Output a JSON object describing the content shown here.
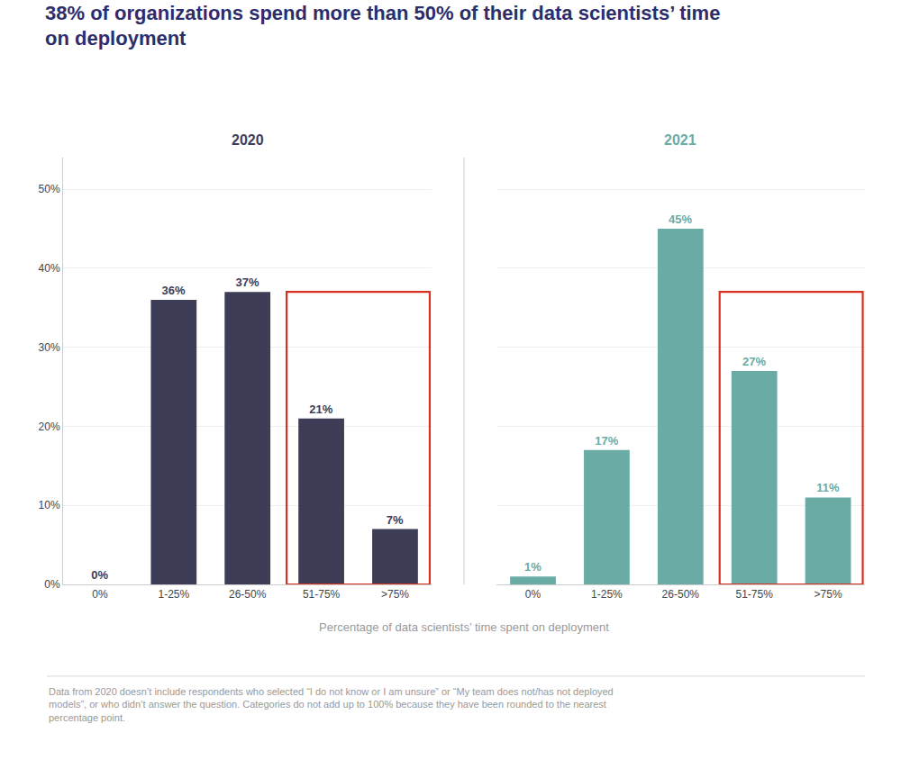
{
  "chart_data": {
    "type": "bar",
    "title": "38% of organizations spend more than 50% of their data scientists’ time\non deployment",
    "xlabel": "Percentage of data scientists’ time spent on deployment",
    "categories": [
      "0%",
      "1-25%",
      "26-50%",
      "51-75%",
      ">75%"
    ],
    "series": [
      {
        "name": "2020",
        "color": "#3d3d58",
        "values": [
          0,
          36,
          37,
          21,
          7
        ],
        "value_labels": [
          "0%",
          "36%",
          "37%",
          "21%",
          "7%"
        ]
      },
      {
        "name": "2021",
        "color": "#6aaba5",
        "values": [
          1,
          17,
          45,
          27,
          11
        ],
        "value_labels": [
          "1%",
          "17%",
          "45%",
          "27%",
          "11%"
        ]
      }
    ],
    "data_labels": true,
    "ylim": [
      0,
      54
    ],
    "yticks": [
      {
        "value": 0,
        "label": "0%"
      },
      {
        "value": 10,
        "label": "10%"
      },
      {
        "value": 20,
        "label": "20%"
      },
      {
        "value": 30,
        "label": "30%"
      },
      {
        "value": 40,
        "label": "40%"
      },
      {
        "value": 50,
        "label": "50%"
      }
    ],
    "grid": true,
    "highlight": {
      "categories": [
        "51-75%",
        ">75%"
      ],
      "top": 37,
      "color": "#d93020"
    },
    "footnote": [
      "Data from 2020 doesn’t include respondents who selected “I do not know or I am unsure” or “My team does not/has not deployed",
      "models”, or who didn’t answer the question. Categories do not add up to 100% because they have been rounded to the nearest",
      "percentage point."
    ]
  }
}
